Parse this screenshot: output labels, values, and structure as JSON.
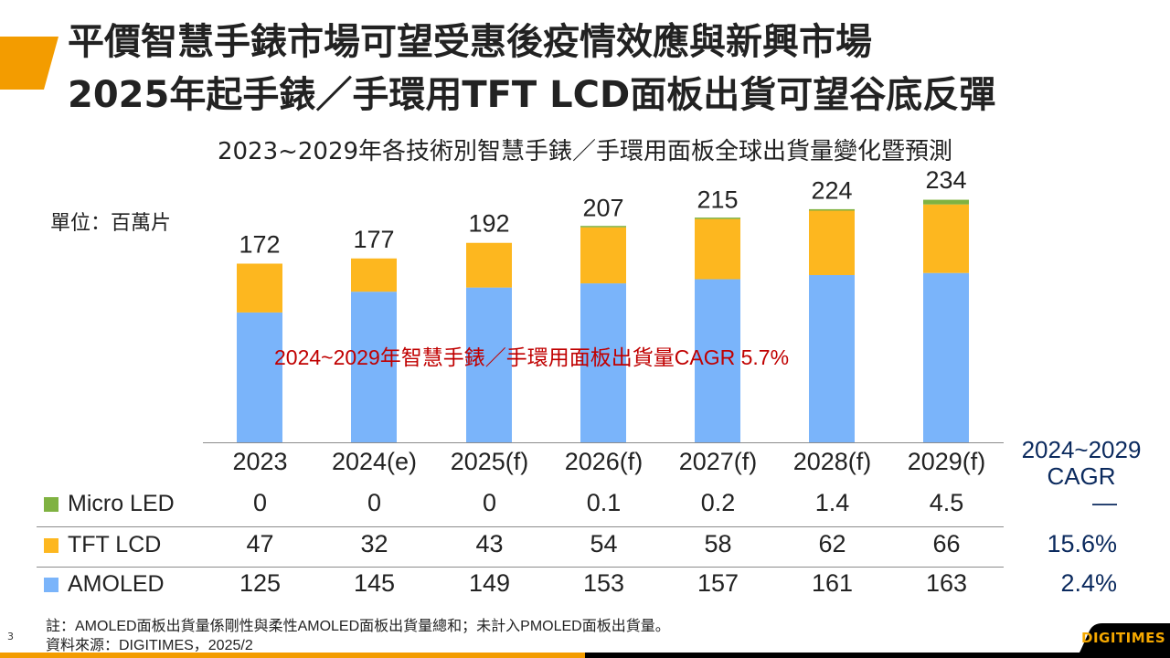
{
  "page": {
    "title_line1": "平價智慧手錶市場可望受惠後疫情效應與新興市場",
    "title_line2": "2025年起手錶／手環用TFT LCD面板出貨可望谷底反彈",
    "page_number": "3",
    "logo_text": "DIGITIMES",
    "accent_color": "#f39c00"
  },
  "chart_data": {
    "type": "bar",
    "stacked": true,
    "title": "2023~2029年各技術別智慧手錶／手環用面板全球出貨量變化暨預測",
    "unit_label": "單位：百萬片",
    "categories": [
      "2023",
      "2024(e)",
      "2025(f)",
      "2026(f)",
      "2027(f)",
      "2028(f)",
      "2029(f)"
    ],
    "series": [
      {
        "name": "AMOLED",
        "color": "#7ab4fa",
        "values": [
          125,
          145,
          149,
          153,
          157,
          161,
          163
        ],
        "value_labels": [
          "125",
          "145",
          "149",
          "153",
          "157",
          "161",
          "163"
        ],
        "cagr": "2.4%"
      },
      {
        "name": "TFT LCD",
        "color": "#fdb71f",
        "values": [
          47,
          32,
          43,
          54,
          58,
          62,
          66
        ],
        "value_labels": [
          "47",
          "32",
          "43",
          "54",
          "58",
          "62",
          "66"
        ],
        "cagr": "15.6%"
      },
      {
        "name": "Micro LED",
        "color": "#7fb241",
        "values": [
          0,
          0,
          0,
          0.1,
          0.2,
          1.4,
          4.5
        ],
        "value_labels": [
          "0",
          "0",
          "0",
          "0.1",
          "0.2",
          "1.4",
          "4.5"
        ],
        "cagr": "—"
      }
    ],
    "totals": [
      172,
      177,
      192,
      207,
      215,
      224,
      234
    ],
    "total_labels": [
      "172",
      "177",
      "192",
      "207",
      "215",
      "224",
      "234"
    ],
    "annotation": "2024~2029年智慧手錶／手環用面板出貨量CAGR 5.7%",
    "cagr_header": [
      "2024~2029",
      "CAGR"
    ],
    "ylim": [
      0,
      234
    ],
    "grid": false,
    "legend": "table-below"
  },
  "footnotes": {
    "note": "註：AMOLED面板出貨量係剛性與柔性AMOLED面板出貨量總和；未計入PMOLED面板出貨量。",
    "source": "資料來源：DIGITIMES，2025/2"
  }
}
